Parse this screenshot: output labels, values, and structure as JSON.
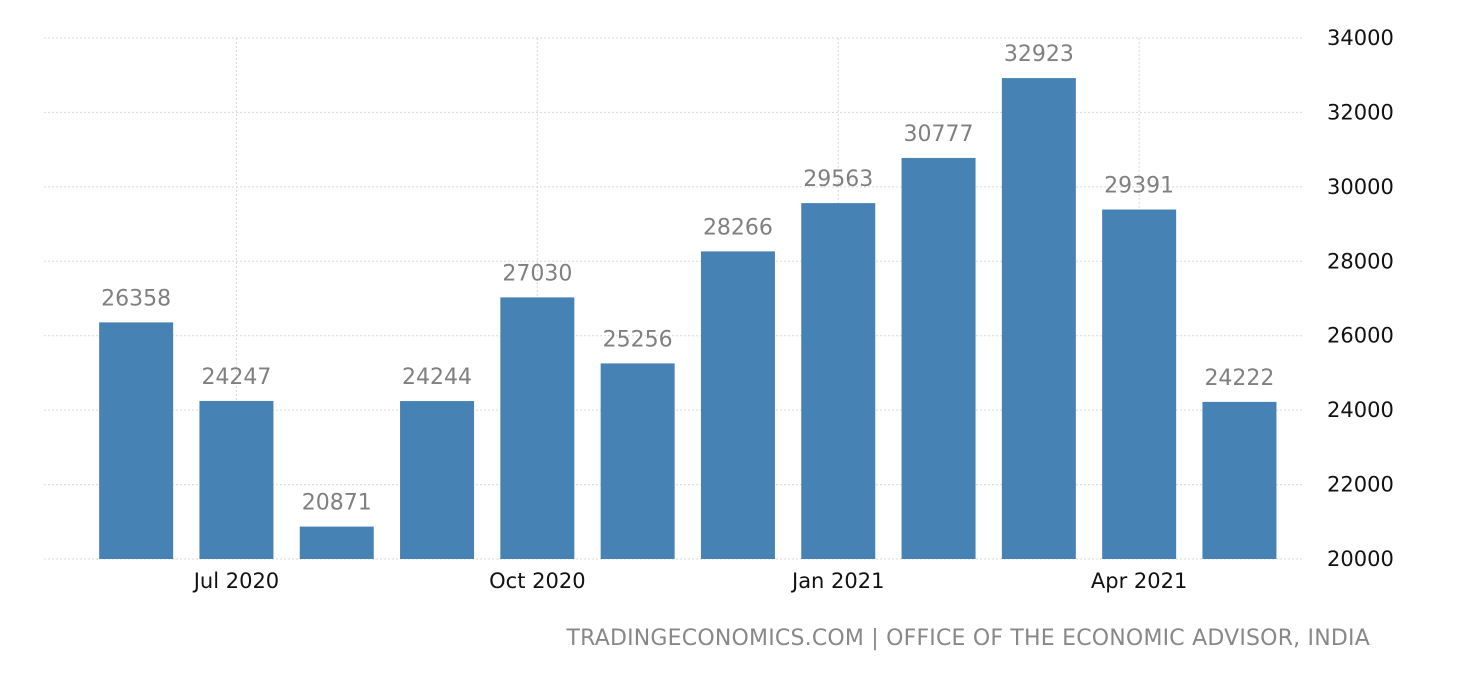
{
  "chart_data": {
    "type": "bar",
    "categories": [
      "Jun 2020",
      "Jul 2020",
      "Aug 2020",
      "Sep 2020",
      "Oct 2020",
      "Nov 2020",
      "Dec 2020",
      "Jan 2021",
      "Feb 2021",
      "Mar 2021",
      "Apr 2021",
      "May 2021"
    ],
    "values": [
      26358,
      24247,
      20871,
      24244,
      27030,
      25256,
      28266,
      29563,
      30777,
      32923,
      29391,
      24222
    ],
    "value_labels": [
      "26358",
      "24247",
      "20871",
      "24244",
      "27030",
      "25256",
      "28266",
      "29563",
      "30777",
      "32923",
      "29391",
      "24222"
    ],
    "x_tick_labels": [
      {
        "label": "Jul 2020",
        "category": "Jul 2020"
      },
      {
        "label": "Oct 2020",
        "category": "Oct 2020"
      },
      {
        "label": "Jan 2021",
        "category": "Jan 2021"
      },
      {
        "label": "Apr 2021",
        "category": "Apr 2021"
      }
    ],
    "y_ticks": [
      "20000",
      "22000",
      "24000",
      "26000",
      "28000",
      "30000",
      "32000",
      "34000"
    ],
    "ylim": [
      20000,
      34000
    ],
    "y_axis_position": "right",
    "grid": true,
    "bar_color": "#4682b4",
    "title": "",
    "xlabel": "",
    "ylabel": ""
  },
  "source": "TRADINGECONOMICS.COM | OFFICE OF THE ECONOMIC ADVISOR, INDIA"
}
